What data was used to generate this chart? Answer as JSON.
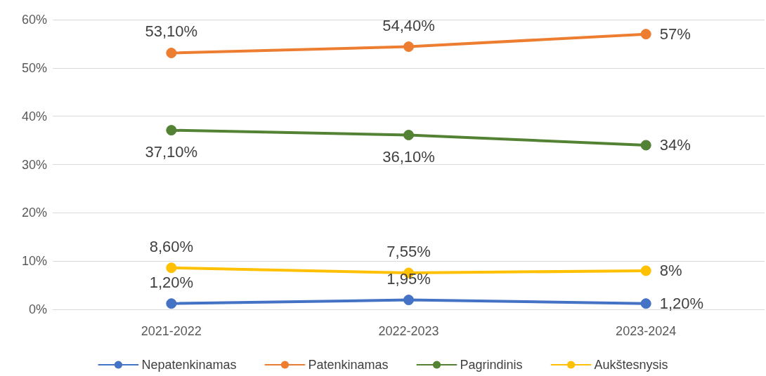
{
  "chart_data": {
    "type": "line",
    "categories": [
      "2021-2022",
      "2022-2023",
      "2023-2024"
    ],
    "series": [
      {
        "name": "Nepatenkinamas",
        "color": "#4472c4",
        "values": [
          1.2,
          1.95,
          1.2
        ],
        "value_labels": [
          "1,20%",
          "1,95%",
          "1,20%"
        ]
      },
      {
        "name": "Patenkinamas",
        "color": "#ed7d31",
        "values": [
          53.1,
          54.4,
          57
        ],
        "value_labels": [
          "53,10%",
          "54,40%",
          "57%"
        ]
      },
      {
        "name": "Pagrindinis",
        "color": "#548235",
        "values": [
          37.1,
          36.1,
          34
        ],
        "value_labels": [
          "37,10%",
          "36,10%",
          "34%"
        ]
      },
      {
        "name": "Aukštesnysis",
        "color": "#ffc000",
        "values": [
          8.6,
          7.55,
          8
        ],
        "value_labels": [
          "8,60%",
          "7,55%",
          "8%"
        ]
      }
    ],
    "ylim": [
      0,
      60
    ],
    "yticks": [
      {
        "value": 0,
        "label": "0%"
      },
      {
        "value": 10,
        "label": "10%"
      },
      {
        "value": 20,
        "label": "20%"
      },
      {
        "value": 30,
        "label": "30%"
      },
      {
        "value": 40,
        "label": "40%"
      },
      {
        "value": 50,
        "label": "50%"
      },
      {
        "value": 60,
        "label": "60%"
      }
    ],
    "grid": "y",
    "legend": "bottom",
    "marker": "circle",
    "line_style": "solid"
  }
}
